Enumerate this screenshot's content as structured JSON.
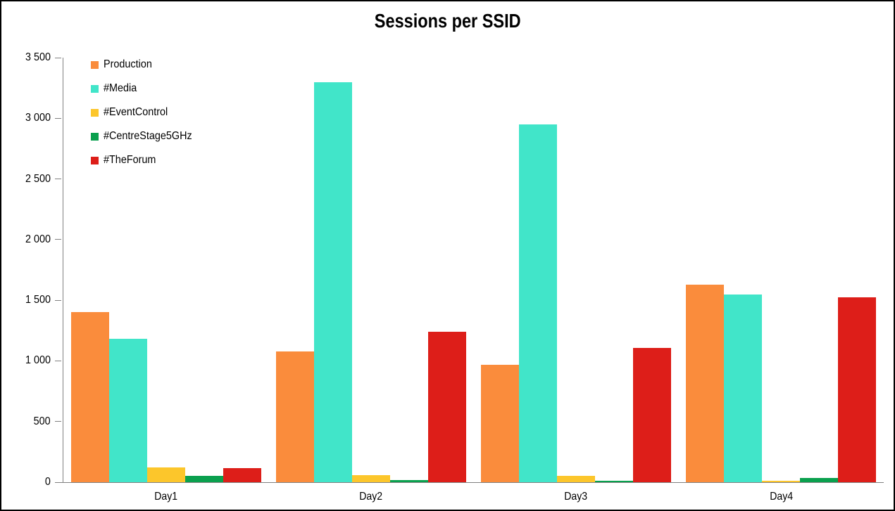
{
  "window": {
    "background": "#FFFFFF",
    "border_color": "#000000"
  },
  "chart_data": {
    "type": "bar",
    "title": "Sessions per SSID",
    "categories": [
      "Day1",
      "Day2",
      "Day3",
      "Day4"
    ],
    "series": [
      {
        "name": "Production",
        "color": "#FA8C3C",
        "values": [
          1405,
          1080,
          965,
          1630
        ]
      },
      {
        "name": "#Media",
        "color": "#41E5C9",
        "values": [
          1180,
          3300,
          2950,
          1545
        ]
      },
      {
        "name": "#EventControl",
        "color": "#FCC62B",
        "values": [
          120,
          60,
          50,
          10
        ]
      },
      {
        "name": "#CentreStage5GHz",
        "color": "#0AA04E",
        "values": [
          55,
          15,
          10,
          35
        ]
      },
      {
        "name": "#TheForum",
        "color": "#DD1E19",
        "values": [
          115,
          1240,
          1105,
          1525
        ]
      }
    ],
    "ylim": [
      0,
      3500
    ],
    "y_ticks": [
      {
        "value": 0,
        "label": "0"
      },
      {
        "value": 500,
        "label": "500"
      },
      {
        "value": 1000,
        "label": "1 000"
      },
      {
        "value": 1500,
        "label": "1 500"
      },
      {
        "value": 2000,
        "label": "2 000"
      },
      {
        "value": 2500,
        "label": "2 500"
      },
      {
        "value": 3000,
        "label": "3 000"
      },
      {
        "value": 3500,
        "label": "3 500"
      }
    ],
    "grid": false,
    "legend_position": "top-left",
    "axis_color": "#808080",
    "text_color": "#000000"
  }
}
